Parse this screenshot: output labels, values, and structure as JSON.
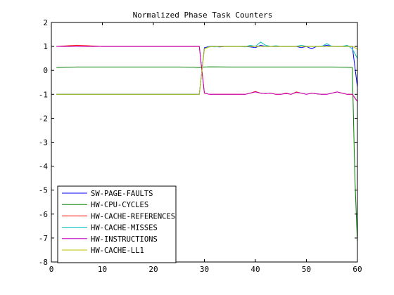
{
  "chart_data": {
    "type": "line",
    "title": "Normalized Phase Task Counters",
    "xlabel": "",
    "ylabel": "",
    "xlim": [
      0,
      60
    ],
    "ylim": [
      -8,
      2
    ],
    "xticks": [
      0,
      10,
      20,
      30,
      40,
      50,
      60
    ],
    "yticks": [
      -8,
      -7,
      -6,
      -5,
      -4,
      -3,
      -2,
      -1,
      0,
      1,
      2
    ],
    "grid": false,
    "legend_position": "bottom-left",
    "series": [
      {
        "name": "SW-PAGE-FAULTS",
        "color": "#0000ff",
        "x": [
          1,
          28,
          29,
          30,
          31,
          32,
          33,
          34,
          35,
          36,
          37,
          38,
          39,
          40,
          41,
          42,
          43,
          44,
          45,
          46,
          47,
          48,
          49,
          50,
          51,
          52,
          53,
          54,
          55,
          56,
          57,
          58,
          59,
          60
        ],
        "y": [
          -1,
          -1,
          -1,
          0.95,
          1,
          1,
          0.98,
          1,
          1,
          1,
          1,
          1,
          0.98,
          0.95,
          1.05,
          1,
          1,
          1,
          1,
          1,
          1,
          1,
          0.95,
          1,
          0.9,
          1,
          1,
          1.05,
          1,
          1,
          1,
          1,
          1,
          -0.7
        ]
      },
      {
        "name": "HW-CPU-CYCLES",
        "color": "#008000",
        "x": [
          1,
          5,
          10,
          15,
          20,
          25,
          28,
          29,
          30,
          31,
          35,
          40,
          45,
          50,
          55,
          58,
          59,
          59.5,
          60
        ],
        "y": [
          0.12,
          0.14,
          0.14,
          0.14,
          0.14,
          0.14,
          0.13,
          0.12,
          0.14,
          0.15,
          0.14,
          0.14,
          0.14,
          0.14,
          0.14,
          0.13,
          0.12,
          -4.5,
          -7.2
        ]
      },
      {
        "name": "HW-CACHE-REFERENCES",
        "color": "#ff0000",
        "x": [
          1,
          5,
          10,
          15,
          20,
          25,
          28,
          29,
          30,
          31,
          32,
          33,
          34,
          35,
          36,
          37,
          38,
          39,
          40,
          41,
          42,
          43,
          44,
          45,
          46,
          47,
          48,
          49,
          50,
          51,
          52,
          53,
          54,
          55,
          56,
          57,
          58,
          59,
          60
        ],
        "y": [
          1,
          1.05,
          1,
          1,
          1,
          1,
          1,
          1,
          -0.95,
          -1,
          -1,
          -1,
          -1,
          -1,
          -1,
          -1,
          -1,
          -0.95,
          -0.88,
          -0.95,
          -0.97,
          -0.95,
          -1,
          -1,
          -0.95,
          -1,
          -0.9,
          -0.95,
          -1,
          -0.95,
          -0.98,
          -1,
          -1,
          -0.95,
          -0.9,
          -0.95,
          -1,
          -1,
          -1.3
        ]
      },
      {
        "name": "HW-CACHE-MISSES",
        "color": "#00bfbf",
        "x": [
          1,
          28,
          29,
          30,
          31,
          32,
          33,
          34,
          35,
          36,
          37,
          38,
          39,
          40,
          41,
          42,
          43,
          44,
          45,
          46,
          47,
          48,
          49,
          50,
          51,
          52,
          53,
          54,
          55,
          56,
          57,
          58,
          59,
          60
        ],
        "y": [
          -1,
          -1,
          -1,
          0.9,
          1,
          0.98,
          1,
          1,
          1,
          1,
          1,
          0.98,
          1.05,
          1,
          1.18,
          1.05,
          1,
          1.03,
          1,
          1,
          1,
          1,
          1.05,
          1,
          1,
          1,
          1,
          1.12,
          1,
          1,
          1,
          1.05,
          0.9,
          0.5
        ]
      },
      {
        "name": "HW-INSTRUCTIONS",
        "color": "#bf00bf",
        "x": [
          1,
          5,
          10,
          15,
          20,
          25,
          28,
          29,
          30,
          31,
          32,
          33,
          34,
          35,
          36,
          37,
          38,
          39,
          40,
          41,
          42,
          43,
          44,
          45,
          46,
          47,
          48,
          49,
          50,
          51,
          52,
          53,
          54,
          55,
          56,
          57,
          58,
          59,
          60
        ],
        "y": [
          1,
          1,
          1,
          1,
          1,
          1,
          1,
          1,
          -0.95,
          -1,
          -1,
          -1,
          -1,
          -1,
          -1,
          -1,
          -1,
          -0.95,
          -0.9,
          -0.95,
          -0.97,
          -0.95,
          -1,
          -1,
          -0.97,
          -1,
          -0.92,
          -0.95,
          -1,
          -0.95,
          -0.98,
          -1,
          -1,
          -0.95,
          -0.9,
          -0.95,
          -1,
          -1,
          -1.3
        ]
      },
      {
        "name": "HW-CACHE-LL1",
        "color": "#bfbf00",
        "x": [
          1,
          28,
          29,
          30,
          31,
          32,
          33,
          34,
          35,
          36,
          37,
          38,
          39,
          40,
          41,
          42,
          43,
          44,
          45,
          46,
          47,
          48,
          49,
          50,
          51,
          52,
          53,
          54,
          55,
          56,
          57,
          58,
          59,
          60
        ],
        "y": [
          -1,
          -1,
          -1,
          0.9,
          0.98,
          1,
          1,
          1,
          1,
          1,
          1,
          1,
          1,
          1,
          1,
          1,
          1,
          1,
          1,
          1,
          1,
          1,
          1,
          1,
          1,
          1,
          1,
          1,
          1,
          1,
          1,
          1,
          1,
          0.9
        ]
      }
    ]
  }
}
